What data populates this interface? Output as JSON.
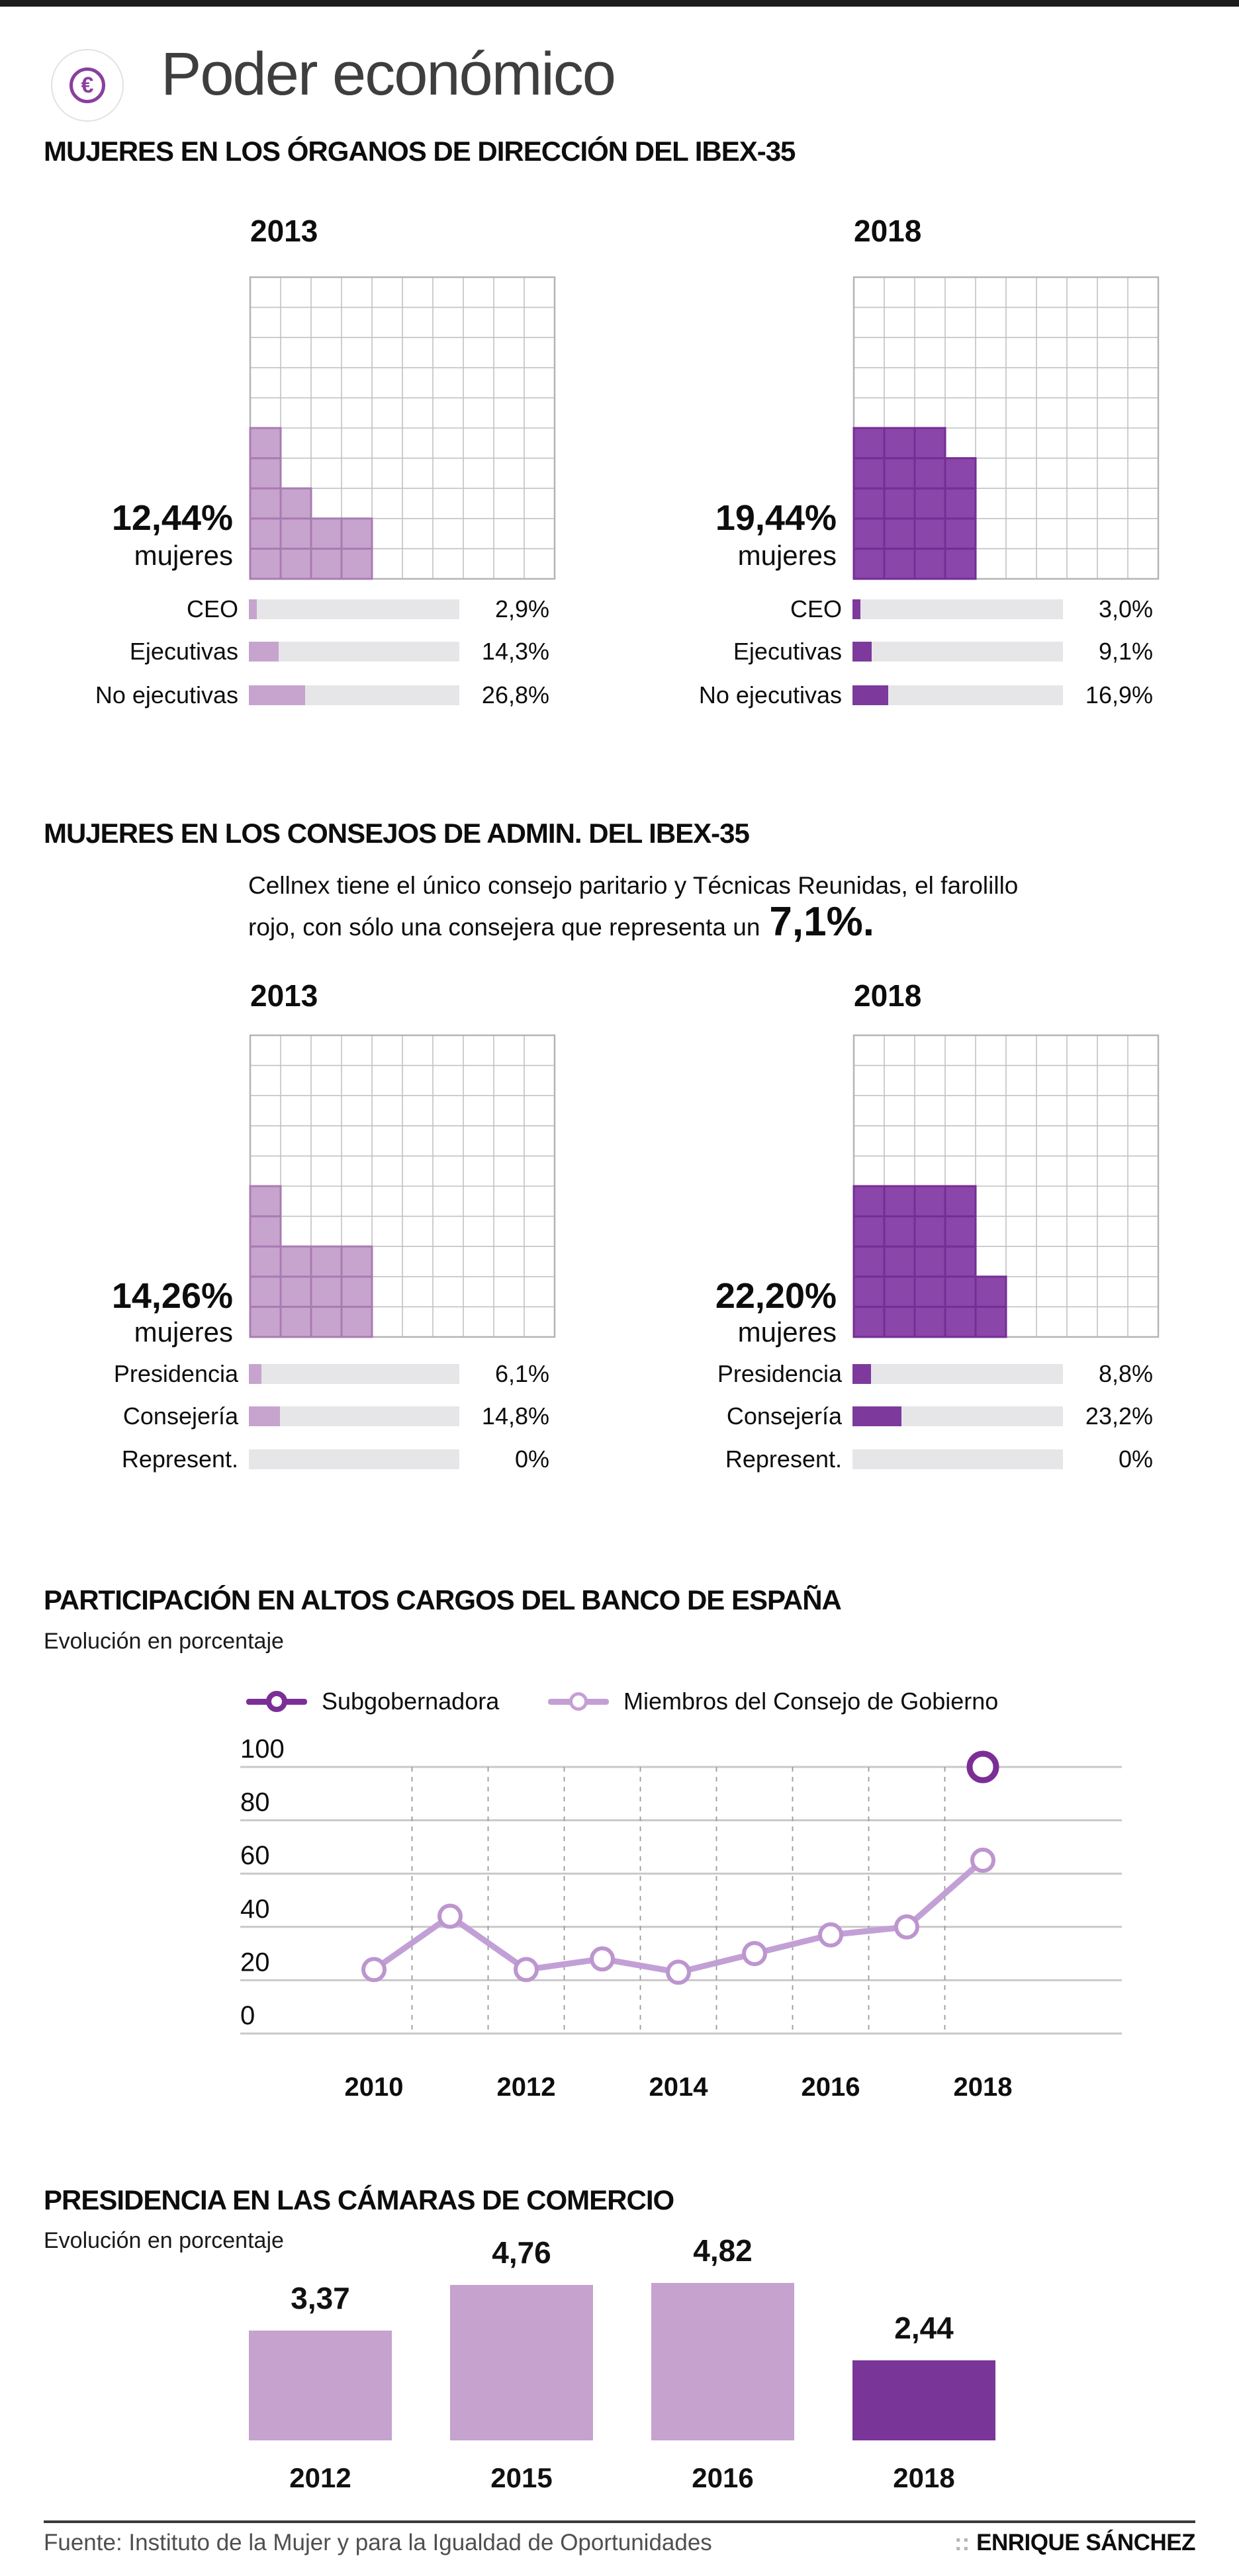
{
  "header": {
    "icon": "euro-circle-icon",
    "icon_symbol": "€",
    "title": "Poder económico"
  },
  "sections": {
    "direccion": {
      "title": "MUJERES EN LOS ÓRGANOS DE DIRECCIÓN DEL IBEX-35"
    },
    "consejos": {
      "title": "MUJERES EN LOS CONSEJOS DE ADMIN. DEL IBEX-35",
      "note_line1": "Cellnex tiene el único consejo paritario y Técnicas Reunidas, el farolillo",
      "note_line2_prefix": "rojo, con sólo una consejera que representa un",
      "note_highlight": "7,1%."
    },
    "banco": {
      "title": "PARTICIPACIÓN EN ALTOS CARGOS DEL BANCO DE ESPAÑA",
      "subtitle": "Evolución en porcentaje",
      "legend": [
        {
          "label": "Subgobernadora",
          "color": "#7b2f96"
        },
        {
          "label": "Miembros del Consejo de Gobierno",
          "color": "#c49fd4"
        }
      ]
    },
    "camaras": {
      "title": "PRESIDENCIA EN LAS CÁMARAS DE COMERCIO",
      "subtitle": "Evolución en porcentaje"
    }
  },
  "colors": {
    "light_cell": "#c7a4ce",
    "light_cell_border": "#a87cb2",
    "light_bar": "#c7a4ce",
    "dark_cell": "#8a46a8",
    "dark_cell_border": "#762d96",
    "dark_bar": "#7d3a9c",
    "track": "#e6e6e8",
    "grid": "#c2c2c2",
    "line_light": "#c2a0d6",
    "line_dark": "#7b2f96"
  },
  "chart_data": [
    {
      "id": "direccion",
      "type": "waffle",
      "grid": [
        10,
        10
      ],
      "sub_label": "mujeres",
      "panels": [
        {
          "year": "2013",
          "percent": 12.44,
          "percent_label": "12,44%",
          "palette": "light",
          "filled_cells": 12,
          "filled_columns_bottom_up": [
            5,
            3,
            2,
            2,
            0,
            0,
            0,
            0,
            0,
            0
          ],
          "bars": [
            {
              "label": "CEO",
              "value": 2.9,
              "value_label": "2,9%"
            },
            {
              "label": "Ejecutivas",
              "value": 14.3,
              "value_label": "14,3%"
            },
            {
              "label": "No ejecutivas",
              "value": 26.8,
              "value_label": "26,8%"
            }
          ]
        },
        {
          "year": "2018",
          "percent": 19.44,
          "percent_label": "19,44%",
          "palette": "dark",
          "filled_cells": 19,
          "filled_columns_bottom_up": [
            5,
            5,
            5,
            4,
            0,
            0,
            0,
            0,
            0,
            0
          ],
          "bars": [
            {
              "label": "CEO",
              "value": 3.0,
              "value_label": "3,0%"
            },
            {
              "label": "Ejecutivas",
              "value": 9.1,
              "value_label": "9,1%"
            },
            {
              "label": "No ejecutivas",
              "value": 16.9,
              "value_label": "16,9%"
            }
          ]
        }
      ]
    },
    {
      "id": "consejos",
      "type": "waffle",
      "grid": [
        10,
        10
      ],
      "sub_label": "mujeres",
      "panels": [
        {
          "year": "2013",
          "percent": 14.26,
          "percent_label": "14,26%",
          "palette": "light",
          "filled_cells": 14,
          "filled_columns_bottom_up": [
            5,
            3,
            3,
            3,
            0,
            0,
            0,
            0,
            0,
            0
          ],
          "bars": [
            {
              "label": "Presidencia",
              "value": 6.1,
              "value_label": "6,1%"
            },
            {
              "label": "Consejería",
              "value": 14.8,
              "value_label": "14,8%"
            },
            {
              "label": "Represent.",
              "value": 0,
              "value_label": "0%"
            }
          ]
        },
        {
          "year": "2018",
          "percent": 22.2,
          "percent_label": "22,20%",
          "palette": "dark",
          "filled_cells": 22,
          "filled_columns_bottom_up": [
            5,
            5,
            5,
            5,
            2,
            0,
            0,
            0,
            0,
            0
          ],
          "bars": [
            {
              "label": "Presidencia",
              "value": 8.8,
              "value_label": "8,8%"
            },
            {
              "label": "Consejería",
              "value": 23.2,
              "value_label": "23,2%"
            },
            {
              "label": "Represent.",
              "value": 0,
              "value_label": "0%"
            }
          ]
        }
      ]
    },
    {
      "id": "banco",
      "type": "line",
      "x": [
        2010,
        2011,
        2012,
        2013,
        2014,
        2015,
        2016,
        2017,
        2018
      ],
      "xtick_labels": [
        "2010",
        "2012",
        "2014",
        "2016",
        "2018"
      ],
      "ylim": [
        0,
        100
      ],
      "yticks": [
        0,
        20,
        40,
        60,
        80,
        100
      ],
      "ytick_labels": [
        "0",
        "20",
        "40",
        "60",
        "80",
        "100"
      ],
      "grid": "horizontal solid + vertical dashed at mid-year",
      "legend_position": "top",
      "series": [
        {
          "name": "Subgobernadora",
          "color": "#7b2f96",
          "points": [
            {
              "x": 2018,
              "y": 100
            }
          ]
        },
        {
          "name": "Miembros del Consejo de Gobierno",
          "color": "#c49fd4",
          "values": [
            24,
            44,
            24,
            28,
            23,
            30,
            37,
            40,
            65
          ]
        }
      ]
    },
    {
      "id": "camaras",
      "type": "bar",
      "categories": [
        "2012",
        "2015",
        "2016",
        "2018"
      ],
      "values": [
        3.37,
        4.76,
        4.82,
        2.44
      ],
      "value_labels": [
        "3,37",
        "4,76",
        "4,82",
        "2,44"
      ],
      "bar_colors": [
        "#c6a2cf",
        "#c6a2cf",
        "#c6a2cf",
        "#7a3598"
      ]
    }
  ],
  "footer": {
    "source": "Fuente: Instituto de la Mujer y para la Igualdad de Oportunidades",
    "credit_prefix": "::",
    "credit": "ENRIQUE SÁNCHEZ"
  }
}
